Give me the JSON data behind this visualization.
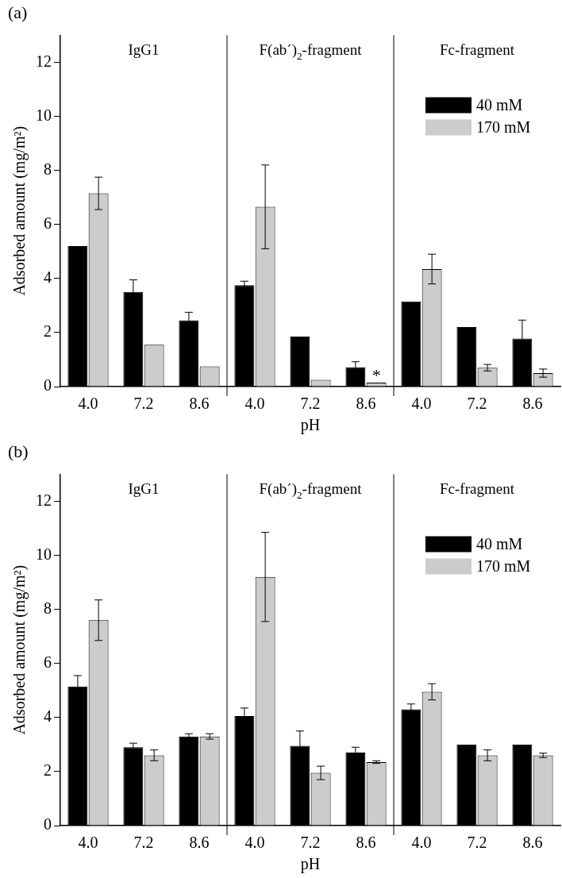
{
  "chart_data": [
    {
      "type": "bar",
      "title": "(a)",
      "xlabel": "pH",
      "ylabel": "Adsorbed amount (mg/m²)",
      "categories": [
        "4.0",
        "7.2",
        "8.6",
        "4.0",
        "7.2",
        "8.6",
        "4.0",
        "7.2",
        "8.6"
      ],
      "series": [
        {
          "name": "40 mM",
          "color": "#000000",
          "values": [
            5.2,
            3.5,
            2.45,
            3.75,
            1.85,
            0.72,
            3.15,
            2.2,
            1.78
          ],
          "errors": [
            null,
            0.45,
            0.3,
            0.15,
            null,
            0.2,
            null,
            null,
            0.68
          ]
        },
        {
          "name": "170 mM",
          "color": "#cccccc",
          "values": [
            7.15,
            1.55,
            0.75,
            6.65,
            0.25,
            0.15,
            4.35,
            0.7,
            0.5
          ],
          "errors": [
            0.6,
            null,
            null,
            1.55,
            null,
            null,
            0.55,
            0.12,
            0.15
          ]
        }
      ],
      "annotations": [
        "IgG1",
        "F(ab´)$_{2}$-fragment",
        "Fc-fragment",
        {
          "text": "*",
          "y": 0.15
        }
      ],
      "ylim": [
        0,
        13
      ],
      "yticks": [
        0,
        2,
        4,
        6,
        8,
        10,
        12
      ],
      "grid": false,
      "legend": "top right"
    },
    {
      "type": "bar",
      "title": "(b)",
      "xlabel": "pH",
      "ylabel": "Adsorbed amount (mg/m²)",
      "categories": [
        "4.0",
        "7.2",
        "8.6",
        "4.0",
        "7.2",
        "8.6",
        "4.0",
        "7.2",
        "8.6"
      ],
      "series": [
        {
          "name": "40 mM",
          "color": "#000000",
          "values": [
            5.15,
            2.9,
            3.3,
            4.05,
            2.95,
            2.7,
            4.3,
            3.0,
            3.0
          ],
          "errors": [
            0.4,
            0.15,
            0.1,
            0.3,
            0.55,
            0.2,
            0.2,
            null,
            null
          ]
        },
        {
          "name": "170 mM",
          "color": "#cccccc",
          "values": [
            7.6,
            2.6,
            3.3,
            9.2,
            1.95,
            2.35,
            4.95,
            2.6,
            2.6
          ],
          "errors": [
            0.75,
            0.2,
            0.1,
            1.65,
            0.25,
            0.05,
            0.3,
            0.2,
            0.08
          ]
        }
      ],
      "annotations": [
        "IgG1",
        "F(ab´)$_{2}$-fragment",
        "Fc-fragment"
      ],
      "ylim": [
        0,
        13
      ],
      "yticks": [
        0,
        2,
        4,
        6,
        8,
        10,
        12
      ],
      "grid": false,
      "legend": "top right"
    }
  ]
}
